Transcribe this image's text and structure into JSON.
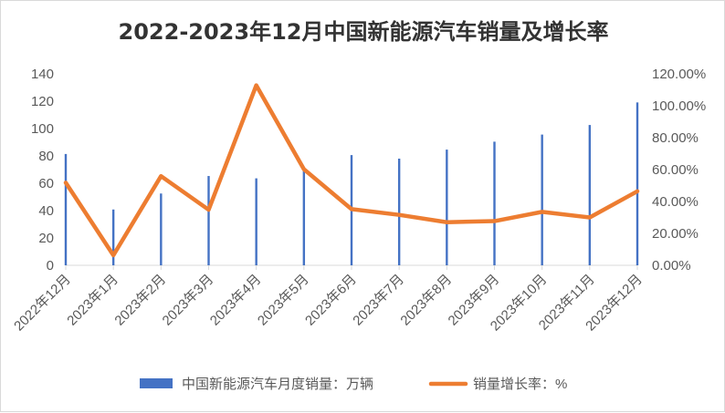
{
  "chart_data": {
    "type": "bar+line",
    "title": "2022-2023年12月中国新能源汽车销量及增长率",
    "categories": [
      "2022年12月",
      "2023年1月",
      "2023年2月",
      "2023年3月",
      "2023年4月",
      "2023年5月",
      "2023年6月",
      "2023年7月",
      "2023年8月",
      "2023年9月",
      "2023年10月",
      "2023年11月",
      "2023年12月"
    ],
    "series": [
      {
        "name": "中国新能源汽车月度销量：万辆",
        "kind": "bar",
        "axis": "left",
        "color": "#4472c4",
        "values": [
          81.4,
          40.8,
          52.5,
          65.3,
          63.6,
          71.7,
          80.6,
          78.0,
          84.6,
          90.4,
          95.6,
          102.6,
          119.1
        ]
      },
      {
        "name": "销量增长率：%",
        "kind": "line",
        "axis": "right",
        "color": "#ed7d31",
        "values": [
          51.8,
          6.3,
          55.9,
          34.8,
          112.8,
          60.2,
          35.2,
          31.6,
          27.0,
          27.7,
          33.5,
          30.0,
          46.4
        ]
      }
    ],
    "y_left": {
      "min": 0,
      "max": 140,
      "ticks": [
        "0",
        "20",
        "40",
        "60",
        "80",
        "100",
        "120",
        "140"
      ]
    },
    "y_right": {
      "min": 0,
      "max": 120,
      "ticks": [
        "0.00%",
        "20.00%",
        "40.00%",
        "60.00%",
        "80.00%",
        "100.00%",
        "120.00%"
      ]
    },
    "grid": false,
    "legend_position": "bottom"
  }
}
